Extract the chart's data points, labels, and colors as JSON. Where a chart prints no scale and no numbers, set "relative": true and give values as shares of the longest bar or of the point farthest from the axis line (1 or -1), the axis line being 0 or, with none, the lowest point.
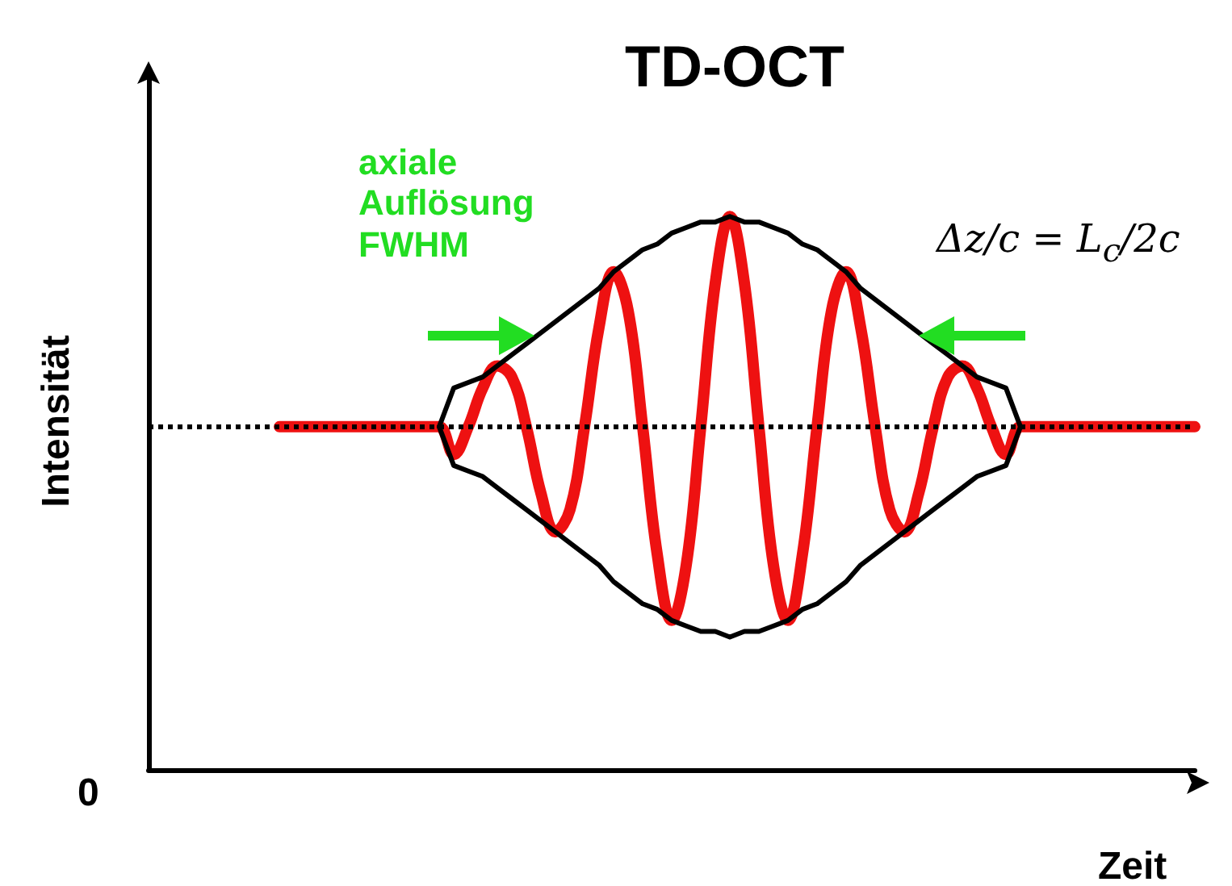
{
  "chart_data": {
    "type": "line",
    "title": "TD-OCT",
    "xlabel": "Zeit",
    "ylabel": "Intensität",
    "relative": true,
    "grid": false,
    "annotations": [
      "axiale Auflösung FWHM",
      "Δz/c = L$_{c}$/2c",
      "0"
    ],
    "ref_lines": [
      {
        "axis": "y",
        "value": 0.62,
        "color": "#000000",
        "line_style": "dotted"
      }
    ],
    "categories": [
      null,
      null,
      null,
      null,
      null,
      null,
      null,
      null,
      null,
      null,
      null,
      null,
      null,
      null,
      null,
      null,
      null,
      null,
      null,
      null,
      null,
      null,
      null,
      null,
      null,
      null,
      null,
      null,
      null,
      null,
      null,
      null,
      null,
      null,
      null,
      null,
      null,
      null,
      null,
      null,
      null,
      null,
      null,
      null,
      null,
      null,
      null,
      null,
      null,
      null,
      null,
      null,
      null,
      null,
      null,
      null,
      null,
      null,
      null,
      null,
      null,
      null,
      null,
      null,
      null,
      null,
      null,
      null,
      null,
      null,
      null,
      null,
      null
    ],
    "series": [
      {
        "color": "#ee1111",
        "values": [
          null,
          null,
          null,
          null,
          null,
          null,
          null,
          null,
          null,
          0.62,
          0.62,
          0.62,
          0.62,
          0.62,
          0.62,
          0.62,
          0.62,
          0.62,
          0.62,
          0.62,
          0.62,
          0.57,
          0.62,
          0.69,
          0.73,
          0.71,
          0.62,
          0.5,
          0.43,
          0.47,
          0.62,
          0.8,
          0.9,
          0.83,
          0.62,
          0.39,
          0.27,
          0.37,
          0.62,
          0.88,
          1,
          0.88,
          0.62,
          0.37,
          0.27,
          0.39,
          0.62,
          0.83,
          0.9,
          0.8,
          0.62,
          0.47,
          0.43,
          0.5,
          0.62,
          0.71,
          0.73,
          0.69,
          0.62,
          0.57,
          0.62,
          0.62,
          0.62,
          0.62,
          0.62,
          0.62,
          0.62,
          0.62,
          0.62,
          0.62,
          0.62,
          0.62,
          0.62
        ]
      },
      {
        "color": "#000000",
        "values": [
          null,
          null,
          null,
          null,
          null,
          null,
          null,
          null,
          null,
          null,
          null,
          null,
          null,
          null,
          null,
          null,
          null,
          null,
          null,
          null,
          0.62,
          0.69,
          0.7,
          0.71,
          0.73,
          0.75,
          0.77,
          0.79,
          0.81,
          0.83,
          0.85,
          0.87,
          0.9,
          0.92,
          0.94,
          0.95,
          0.97,
          0.98,
          0.99,
          0.99,
          1,
          0.99,
          0.99,
          0.98,
          0.97,
          0.95,
          0.94,
          0.92,
          0.9,
          0.87,
          0.85,
          0.83,
          0.81,
          0.79,
          0.77,
          0.75,
          0.73,
          0.71,
          0.7,
          0.69,
          0.62,
          null,
          null,
          null,
          null,
          null,
          null,
          null,
          null,
          null,
          null,
          null,
          null
        ]
      },
      {
        "color": "#000000",
        "values": [
          null,
          null,
          null,
          null,
          null,
          null,
          null,
          null,
          null,
          null,
          null,
          null,
          null,
          null,
          null,
          null,
          null,
          null,
          null,
          null,
          0.62,
          0.55,
          0.54,
          0.53,
          0.51,
          0.49,
          0.47,
          0.45,
          0.43,
          0.41,
          0.39,
          0.37,
          0.34,
          0.32,
          0.3,
          0.29,
          0.27,
          0.26,
          0.25,
          0.25,
          0.24,
          0.25,
          0.25,
          0.26,
          0.27,
          0.29,
          0.3,
          0.32,
          0.34,
          0.37,
          0.39,
          0.41,
          0.43,
          0.45,
          0.47,
          0.49,
          0.51,
          0.53,
          0.54,
          0.55,
          0.62,
          null,
          null,
          null,
          null,
          null,
          null,
          null,
          null,
          null,
          null,
          null,
          null
        ]
      }
    ]
  }
}
